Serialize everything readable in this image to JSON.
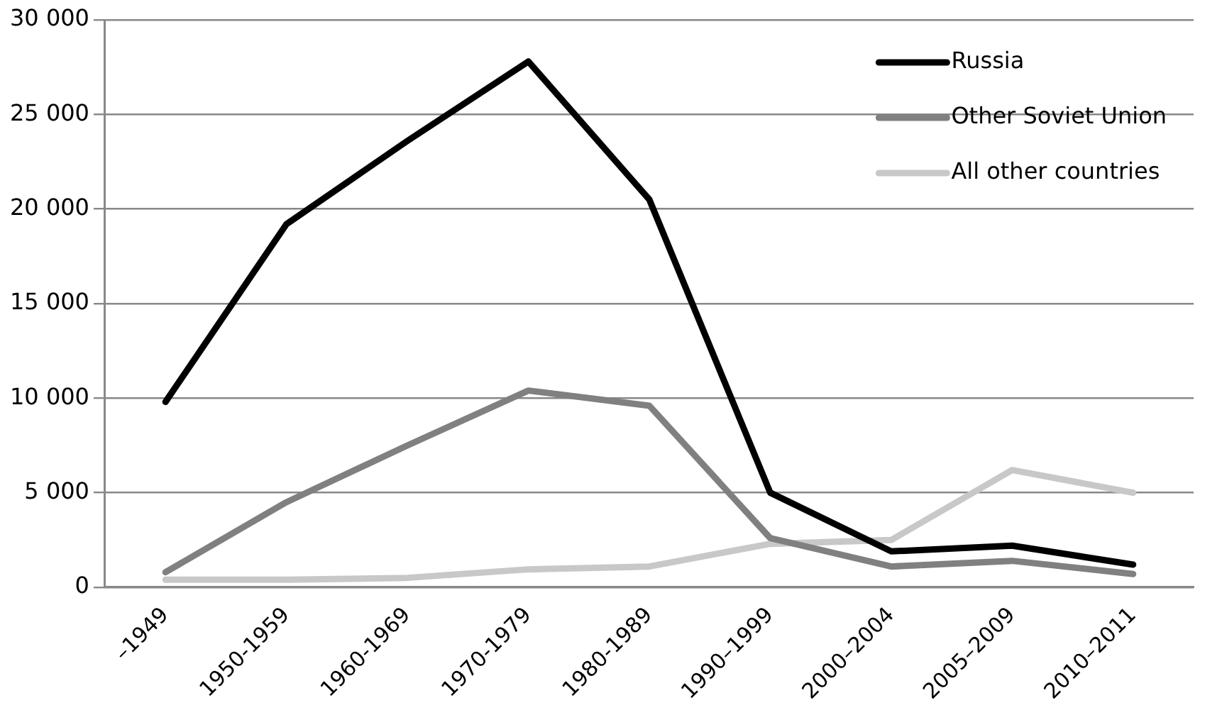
{
  "chart_data": {
    "type": "line",
    "categories": [
      "–1949",
      "1950-1959",
      "1960-1969",
      "1970-1979",
      "1980-1989",
      "1990–1999",
      "2000–2004",
      "2005–2009",
      "2010–2011"
    ],
    "series": [
      {
        "name": "Russia",
        "color": "#000000",
        "values": [
          9800,
          19200,
          23600,
          27800,
          20500,
          5000,
          1900,
          2200,
          1200
        ]
      },
      {
        "name": "Other Soviet Union",
        "color": "#808080",
        "values": [
          800,
          4500,
          7500,
          10400,
          9600,
          2600,
          1100,
          1400,
          700
        ]
      },
      {
        "name": "All other countries",
        "color": "#c8c8c8",
        "values": [
          400,
          400,
          500,
          950,
          1100,
          2300,
          2500,
          6200,
          5000
        ]
      }
    ],
    "ylim": [
      0,
      30000
    ],
    "yticks": [
      {
        "value": 0,
        "label": "0"
      },
      {
        "value": 5000,
        "label": "5 000"
      },
      {
        "value": 10000,
        "label": "10 000"
      },
      {
        "value": 15000,
        "label": "15 000"
      },
      {
        "value": 20000,
        "label": "20 000"
      },
      {
        "value": 25000,
        "label": "25 000"
      },
      {
        "value": 30000,
        "label": "30 000"
      }
    ],
    "grid": "y",
    "legend": "top right",
    "marker": "none",
    "line_style": "solid"
  }
}
